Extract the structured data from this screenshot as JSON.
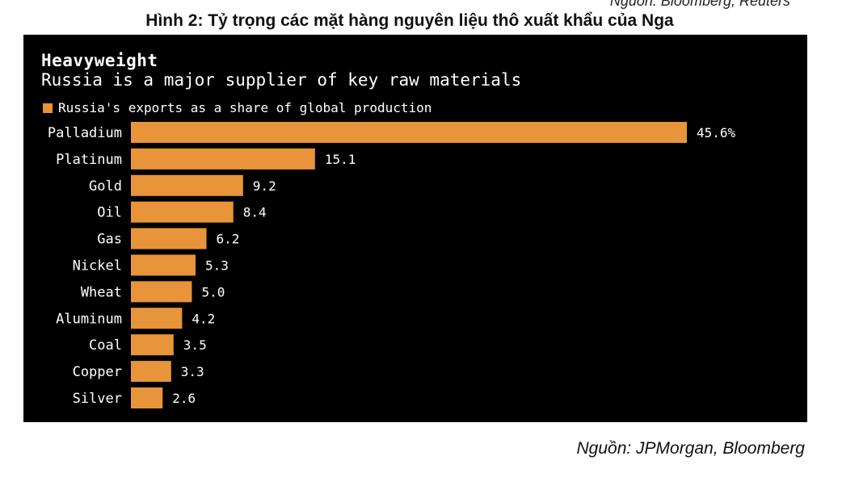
{
  "document": {
    "top_cut_text": "Nguồn: Bloomberg, Reuters",
    "figure_caption": "Hình 2: Tỷ trọng các mặt hàng nguyên liệu thô xuất khẩu của Nga",
    "source_note": "Nguồn: JPMorgan, Bloomberg"
  },
  "colors": {
    "bar": "#e8943a",
    "background": "#000000",
    "text": "#ffffff"
  },
  "chart_data": {
    "type": "bar",
    "orientation": "horizontal",
    "title": "Heavyweight",
    "subtitle": "Russia is a major supplier of key raw materials",
    "legend": {
      "label": "Russia's exports as a share of global production",
      "position": "top-left"
    },
    "categories": [
      "Palladium",
      "Platinum",
      "Gold",
      "Oil",
      "Gas",
      "Nickel",
      "Wheat",
      "Aluminum",
      "Coal",
      "Copper",
      "Silver"
    ],
    "values": [
      45.6,
      15.1,
      9.2,
      8.4,
      6.2,
      5.3,
      5.0,
      4.2,
      3.5,
      3.3,
      2.6
    ],
    "value_labels": [
      "45.6%",
      "15.1",
      "9.2",
      "8.4",
      "6.2",
      "5.3",
      "5.0",
      "4.2",
      "3.5",
      "3.3",
      "2.6"
    ],
    "xlim": [
      0,
      45.6
    ],
    "grid": false
  }
}
